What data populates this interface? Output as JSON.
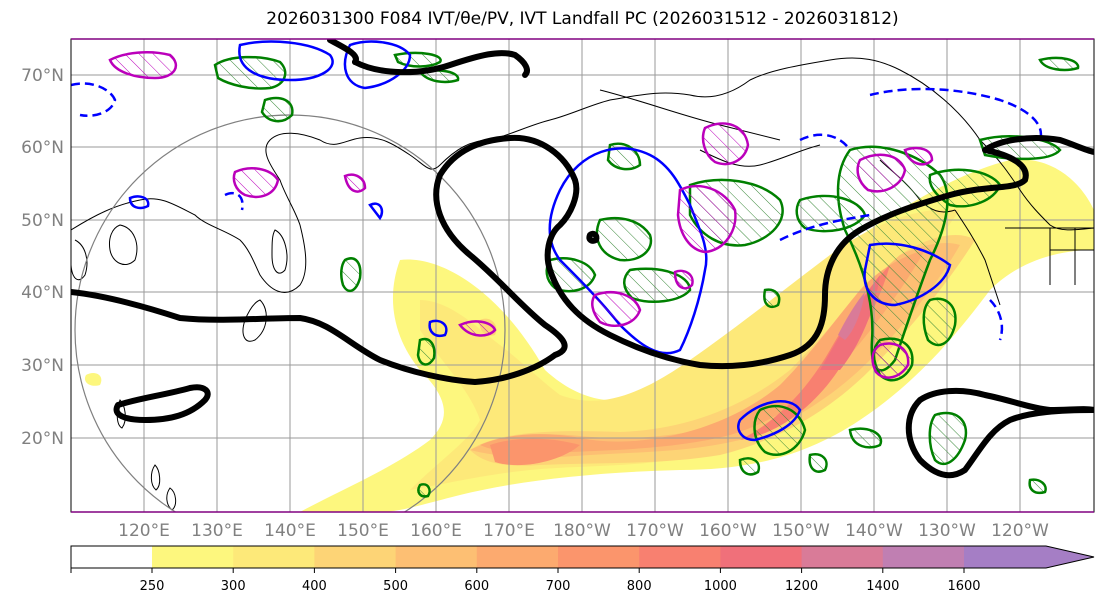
{
  "title": "2026031300 F084 IVT/θe/PV, IVT Landfall PC (2026031512 - 2026031812)",
  "axes": {
    "lat_labels": [
      "70°N",
      "60°N",
      "50°N",
      "40°N",
      "30°N",
      "20°N"
    ],
    "lon_labels": [
      "120°E",
      "130°E",
      "140°E",
      "150°E",
      "160°E",
      "170°E",
      "180°W",
      "170°W",
      "160°W",
      "150°W",
      "140°W",
      "130°W",
      "120°W"
    ]
  },
  "colorbar": {
    "ticks": [
      "250",
      "300",
      "400",
      "500",
      "600",
      "700",
      "800",
      "1000",
      "1200",
      "1400",
      "1600"
    ],
    "colors": [
      "#fdf77e",
      "#fde979",
      "#fdd476",
      "#fdbf73",
      "#fcaa6f",
      "#fb956c",
      "#f88070",
      "#f0707a",
      "#d97b98",
      "#c07fb2",
      "#a57ec5"
    ]
  },
  "contour_colors": {
    "theta_e": "#000000",
    "pv_blue": "#0000ff",
    "green": "#008000",
    "magenta": "#bb00bb"
  }
}
